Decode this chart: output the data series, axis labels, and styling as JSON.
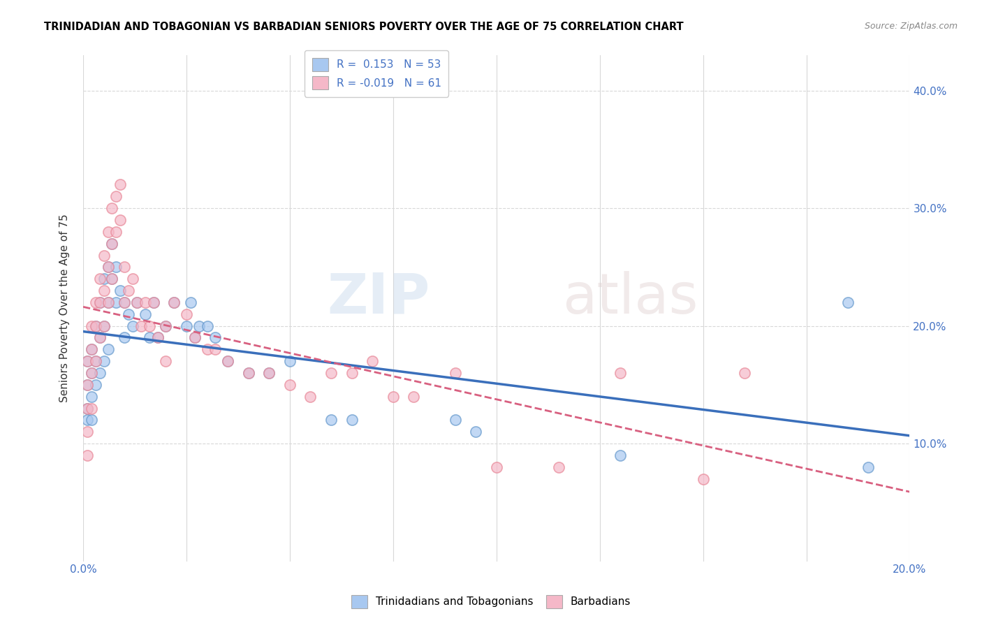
{
  "title": "TRINIDADIAN AND TOBAGONIAN VS BARBADIAN SENIORS POVERTY OVER THE AGE OF 75 CORRELATION CHART",
  "source": "Source: ZipAtlas.com",
  "xmin": 0.0,
  "xmax": 0.2,
  "ymin": 0.0,
  "ymax": 0.43,
  "blue_R": 0.153,
  "blue_N": 53,
  "pink_R": -0.019,
  "pink_N": 61,
  "blue_color": "#A8C8F0",
  "pink_color": "#F5B8C8",
  "blue_edge_color": "#6699CC",
  "pink_edge_color": "#E88898",
  "blue_line_color": "#3A6FBB",
  "pink_line_color": "#D86080",
  "background_color": "#FFFFFF",
  "grid_color": "#D8D8D8",
  "legend_label_blue": "Trinidadians and Tobagonians",
  "legend_label_pink": "Barbadians",
  "watermark_text": "ZIPatlas",
  "blue_x": [
    0.001,
    0.001,
    0.001,
    0.001,
    0.002,
    0.002,
    0.002,
    0.002,
    0.003,
    0.003,
    0.003,
    0.004,
    0.004,
    0.004,
    0.005,
    0.005,
    0.005,
    0.006,
    0.006,
    0.006,
    0.007,
    0.007,
    0.008,
    0.008,
    0.009,
    0.01,
    0.01,
    0.011,
    0.012,
    0.013,
    0.015,
    0.016,
    0.017,
    0.018,
    0.02,
    0.022,
    0.025,
    0.026,
    0.027,
    0.028,
    0.03,
    0.032,
    0.035,
    0.04,
    0.045,
    0.05,
    0.06,
    0.065,
    0.09,
    0.095,
    0.13,
    0.185,
    0.19
  ],
  "blue_y": [
    0.17,
    0.15,
    0.13,
    0.12,
    0.18,
    0.16,
    0.14,
    0.12,
    0.2,
    0.17,
    0.15,
    0.22,
    0.19,
    0.16,
    0.24,
    0.2,
    0.17,
    0.25,
    0.22,
    0.18,
    0.27,
    0.24,
    0.25,
    0.22,
    0.23,
    0.22,
    0.19,
    0.21,
    0.2,
    0.22,
    0.21,
    0.19,
    0.22,
    0.19,
    0.2,
    0.22,
    0.2,
    0.22,
    0.19,
    0.2,
    0.2,
    0.19,
    0.17,
    0.16,
    0.16,
    0.17,
    0.12,
    0.12,
    0.12,
    0.11,
    0.09,
    0.22,
    0.08
  ],
  "pink_x": [
    0.001,
    0.001,
    0.001,
    0.001,
    0.001,
    0.002,
    0.002,
    0.002,
    0.002,
    0.003,
    0.003,
    0.003,
    0.004,
    0.004,
    0.004,
    0.005,
    0.005,
    0.005,
    0.006,
    0.006,
    0.006,
    0.007,
    0.007,
    0.007,
    0.008,
    0.008,
    0.009,
    0.009,
    0.01,
    0.01,
    0.011,
    0.012,
    0.013,
    0.014,
    0.015,
    0.016,
    0.017,
    0.018,
    0.02,
    0.022,
    0.025,
    0.027,
    0.03,
    0.032,
    0.035,
    0.04,
    0.045,
    0.05,
    0.055,
    0.06,
    0.065,
    0.07,
    0.075,
    0.08,
    0.09,
    0.1,
    0.115,
    0.13,
    0.15,
    0.16,
    0.02
  ],
  "pink_y": [
    0.17,
    0.15,
    0.13,
    0.11,
    0.09,
    0.2,
    0.18,
    0.16,
    0.13,
    0.22,
    0.2,
    0.17,
    0.24,
    0.22,
    0.19,
    0.26,
    0.23,
    0.2,
    0.28,
    0.25,
    0.22,
    0.3,
    0.27,
    0.24,
    0.31,
    0.28,
    0.32,
    0.29,
    0.25,
    0.22,
    0.23,
    0.24,
    0.22,
    0.2,
    0.22,
    0.2,
    0.22,
    0.19,
    0.2,
    0.22,
    0.21,
    0.19,
    0.18,
    0.18,
    0.17,
    0.16,
    0.16,
    0.15,
    0.14,
    0.16,
    0.16,
    0.17,
    0.14,
    0.14,
    0.16,
    0.08,
    0.08,
    0.16,
    0.07,
    0.16,
    0.17
  ]
}
